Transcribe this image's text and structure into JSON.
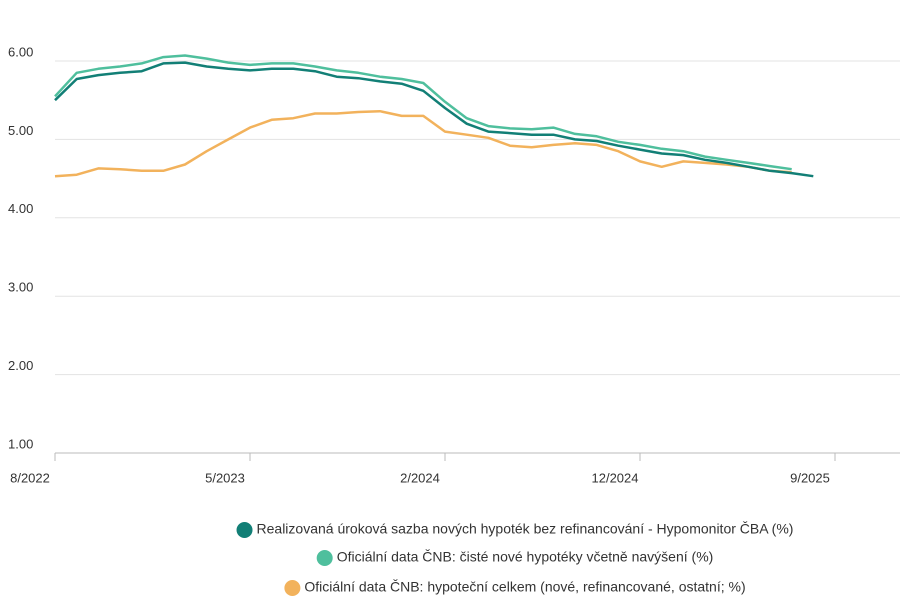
{
  "chart_data": {
    "type": "line",
    "categories": [
      "8/2022",
      null,
      null,
      null,
      null,
      null,
      null,
      null,
      null,
      "5/2023",
      null,
      null,
      null,
      null,
      null,
      null,
      null,
      null,
      "2/2024",
      null,
      null,
      null,
      null,
      null,
      null,
      null,
      null,
      "12/2024",
      null,
      null,
      null,
      null,
      null,
      null,
      null,
      null,
      "9/2025"
    ],
    "series": [
      {
        "name": "Realizovaná úroková sazba nových hypoték bez refinancování - Hypomonitor ČBA (%)",
        "color": "#127f76",
        "values": [
          5.5,
          5.77,
          5.82,
          5.85,
          5.87,
          5.97,
          5.98,
          5.93,
          5.9,
          5.88,
          5.9,
          5.9,
          5.87,
          5.8,
          5.78,
          5.74,
          5.71,
          5.62,
          5.4,
          5.2,
          5.1,
          5.08,
          5.06,
          5.06,
          5.0,
          4.98,
          4.92,
          4.87,
          4.82,
          4.8,
          4.74,
          4.7,
          4.65,
          4.6,
          4.57,
          4.53,
          null
        ]
      },
      {
        "name": "Oficiální data ČNB: čisté nové hypotéky včetně navýšení (%)",
        "color": "#4fbf9d",
        "values": [
          5.55,
          5.85,
          5.9,
          5.93,
          5.97,
          6.05,
          6.07,
          6.03,
          5.98,
          5.95,
          5.97,
          5.97,
          5.93,
          5.88,
          5.85,
          5.8,
          5.77,
          5.72,
          5.48,
          5.27,
          5.17,
          5.14,
          5.13,
          5.15,
          5.07,
          5.04,
          4.97,
          4.93,
          4.88,
          4.85,
          4.78,
          4.74,
          4.7,
          4.66,
          4.62,
          null,
          null
        ]
      },
      {
        "name": "Oficiální data ČNB: hypoteční celkem (nové, refinancované, ostatní; %)",
        "color": "#f2b25c",
        "values": [
          4.53,
          4.55,
          4.63,
          4.62,
          4.6,
          4.6,
          4.68,
          4.85,
          5.0,
          5.15,
          5.25,
          5.27,
          5.33,
          5.33,
          5.35,
          5.36,
          5.3,
          5.3,
          5.1,
          5.06,
          5.02,
          4.92,
          4.9,
          4.93,
          4.95,
          4.93,
          4.85,
          4.72,
          4.65,
          4.72,
          4.7,
          4.68,
          4.65,
          4.6,
          4.58,
          null,
          null
        ]
      }
    ],
    "ylim": [
      1,
      6.3
    ],
    "yticks": [
      {
        "value": 1,
        "label": "1.00"
      },
      {
        "value": 2,
        "label": "2.00"
      },
      {
        "value": 3,
        "label": "3.00"
      },
      {
        "value": 4,
        "label": "4.00"
      },
      {
        "value": 5,
        "label": "5.00"
      },
      {
        "value": 6,
        "label": "6.00"
      }
    ],
    "grid": true
  }
}
